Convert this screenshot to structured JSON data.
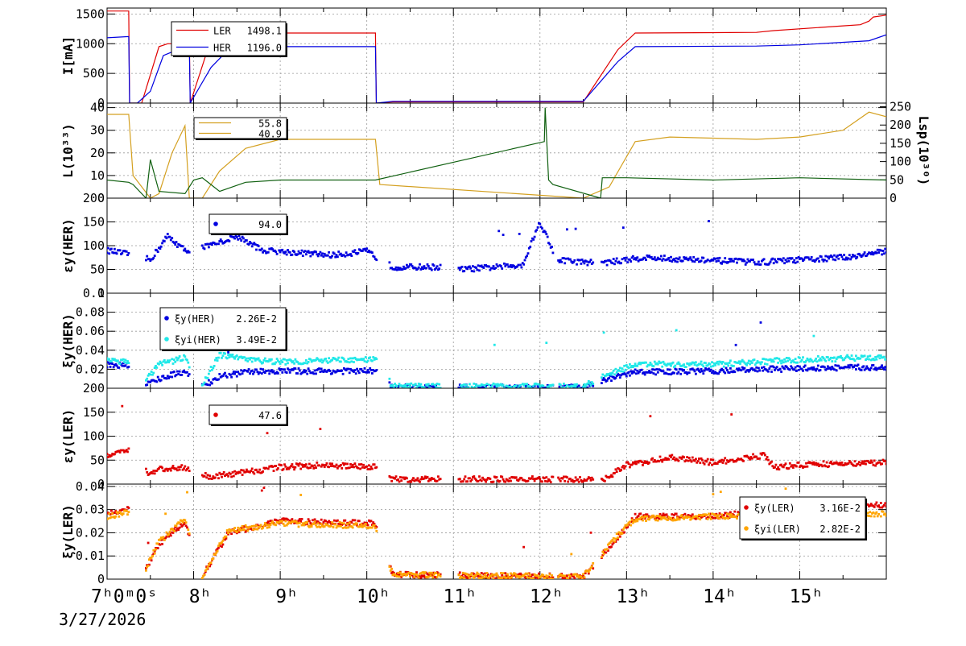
{
  "date": "3/27/2026",
  "first_tick_label": "7ʰ0ᵐ0ˢ",
  "chart_data": [
    {
      "type": "line",
      "ylabel": "I[mA]",
      "yticks": [
        0,
        500,
        1000,
        1500
      ],
      "ylim": [
        0,
        1600
      ],
      "legend": [
        {
          "name": "LER",
          "value": "1498.1",
          "color": "#e00000"
        },
        {
          "name": "HER",
          "value": "1196.0",
          "color": "#0000e0"
        }
      ],
      "series": [
        {
          "name": "LER",
          "color": "#e00000",
          "x": [
            7.0,
            7.25,
            7.26,
            7.3,
            7.4,
            7.6,
            7.7,
            7.9,
            7.95,
            7.96,
            8.15,
            8.3,
            8.6,
            9.0,
            10.1,
            10.11,
            10.3,
            12.5,
            12.9,
            13.1,
            14.5,
            14.7,
            15.5,
            15.7,
            15.8,
            15.85,
            16.0
          ],
          "y": [
            1550,
            1550,
            0,
            0,
            0,
            950,
            1000,
            1000,
            1050,
            0,
            850,
            1150,
            1180,
            1180,
            1180,
            0,
            20,
            20,
            900,
            1180,
            1190,
            1220,
            1300,
            1320,
            1380,
            1450,
            1480
          ]
        },
        {
          "name": "HER",
          "color": "#0000e0",
          "x": [
            7.0,
            7.25,
            7.26,
            7.35,
            7.5,
            7.65,
            7.9,
            7.95,
            7.96,
            8.2,
            8.4,
            8.5,
            8.9,
            10.1,
            10.11,
            10.3,
            12.5,
            12.9,
            13.1,
            14.5,
            15.0,
            15.8,
            16.0
          ],
          "y": [
            1100,
            1120,
            0,
            0,
            200,
            800,
            950,
            950,
            0,
            600,
            900,
            950,
            950,
            950,
            0,
            30,
            30,
            700,
            950,
            960,
            980,
            1050,
            1150
          ]
        }
      ]
    },
    {
      "type": "line",
      "ylabel": "L(10³³)",
      "y2label": "Lsp(10³⁰)",
      "yticks": [
        0,
        10,
        20,
        30,
        40
      ],
      "ylim": [
        0,
        42
      ],
      "y2ticks": [
        0,
        50,
        100,
        150,
        200,
        250
      ],
      "legend": [
        {
          "name": "",
          "value": "55.8",
          "color": "#d4a020"
        },
        {
          "name": "",
          "value": "40.9",
          "color": "#d4a020"
        }
      ],
      "series": [
        {
          "name": "",
          "color": "#d4a020",
          "x": [
            7.0,
            7.25,
            7.3,
            7.5,
            7.6,
            7.75,
            7.9,
            7.95,
            8.1,
            8.3,
            8.6,
            9.0,
            10.1,
            10.15,
            12.5,
            12.8,
            13.1,
            13.5,
            14.5,
            15.0,
            15.5,
            15.8,
            16.0
          ],
          "y": [
            37,
            37,
            10,
            0,
            2,
            20,
            32,
            0,
            0,
            12,
            22,
            26,
            26,
            6,
            0,
            5,
            25,
            27,
            26,
            27,
            30,
            38,
            36
          ]
        },
        {
          "name": "",
          "color": "#106010",
          "x": [
            7.0,
            7.25,
            7.3,
            7.45,
            7.5,
            7.6,
            7.9,
            8.0,
            8.1,
            8.3,
            8.6,
            9.0,
            10.1,
            12.05,
            12.06,
            12.1,
            12.15,
            12.7,
            12.72,
            13.0,
            14.0,
            15.0,
            16.0
          ],
          "y": [
            8,
            7,
            6,
            0,
            17,
            3,
            2,
            8,
            9,
            3,
            7,
            8,
            8,
            25,
            40,
            8,
            6,
            0,
            9,
            9,
            8,
            9,
            8
          ]
        }
      ]
    },
    {
      "type": "scatter",
      "ylabel": "εy(HER)",
      "yticks": [
        0,
        50,
        100,
        150,
        200
      ],
      "ylim": [
        0,
        200
      ],
      "legend": [
        {
          "name": "",
          "value": "94.0",
          "color": "#0000e0"
        }
      ],
      "series": [
        {
          "name": "",
          "color": "#0000e0",
          "x": [
            7.0,
            7.3,
            7.5,
            7.7,
            7.9,
            8.2,
            8.5,
            8.8,
            9.2,
            9.6,
            10.0,
            10.3,
            10.8,
            11.1,
            11.5,
            11.8,
            12.0,
            12.2,
            12.5,
            12.8,
            13.2,
            13.8,
            14.5,
            15.0,
            15.5,
            16.0
          ],
          "y": [
            90,
            80,
            70,
            120,
            90,
            100,
            120,
            90,
            85,
            80,
            88,
            55,
            55,
            50,
            55,
            60,
            150,
            70,
            65,
            65,
            75,
            70,
            65,
            70,
            75,
            88
          ]
        }
      ]
    },
    {
      "type": "scatter",
      "ylabel": "ξy(HER)",
      "yticks": [
        0.02,
        0.04,
        0.06,
        0.08,
        0.1
      ],
      "ytick_labels": [
        "0.02",
        "0.04",
        "0.06",
        "0.08",
        "0.1"
      ],
      "ylim": [
        0,
        0.1
      ],
      "legend": [
        {
          "name": "ξy(HER)",
          "value": "2.26E-2",
          "color": "#0000e0"
        },
        {
          "name": "ξyi(HER)",
          "value": "3.49E-2",
          "color": "#20e8e8"
        }
      ],
      "series": [
        {
          "name": "ξy(HER)",
          "color": "#0000e0",
          "x": [
            7.0,
            7.25,
            7.4,
            7.6,
            7.9,
            8.1,
            8.3,
            8.6,
            9.0,
            10.1,
            10.3,
            12.5,
            12.8,
            13.1,
            14.0,
            15.0,
            16.0
          ],
          "y": [
            0.025,
            0.024,
            0.002,
            0.01,
            0.018,
            0.002,
            0.012,
            0.017,
            0.018,
            0.018,
            0.001,
            0.001,
            0.01,
            0.017,
            0.018,
            0.021,
            0.022
          ]
        },
        {
          "name": "ξyi(HER)",
          "color": "#20e8e8",
          "x": [
            7.0,
            7.25,
            7.4,
            7.6,
            7.9,
            8.1,
            8.3,
            8.6,
            9.0,
            10.1,
            10.3,
            12.5,
            12.8,
            13.1,
            14.0,
            15.0,
            16.0
          ],
          "y": [
            0.03,
            0.028,
            0.003,
            0.025,
            0.032,
            0.004,
            0.035,
            0.03,
            0.028,
            0.03,
            0.002,
            0.002,
            0.015,
            0.025,
            0.025,
            0.03,
            0.033
          ]
        }
      ]
    },
    {
      "type": "scatter",
      "ylabel": "εy(LER)",
      "yticks": [
        0,
        50,
        100,
        150,
        200
      ],
      "ylim": [
        0,
        200
      ],
      "legend": [
        {
          "name": "",
          "value": "47.6",
          "color": "#e00000"
        }
      ],
      "series": [
        {
          "name": "",
          "color": "#e00000",
          "x": [
            7.0,
            7.25,
            7.5,
            7.6,
            7.9,
            8.2,
            8.6,
            9.0,
            9.5,
            10.1,
            10.3,
            11.0,
            12.0,
            12.5,
            12.7,
            13.0,
            13.5,
            14.0,
            14.6,
            14.7,
            15.0,
            16.0
          ],
          "y": [
            60,
            70,
            20,
            30,
            35,
            15,
            25,
            35,
            40,
            35,
            10,
            10,
            10,
            10,
            5,
            40,
            55,
            45,
            60,
            35,
            40,
            45
          ]
        }
      ]
    },
    {
      "type": "scatter",
      "ylabel": "ξy(LER)",
      "yticks": [
        0,
        0.01,
        0.02,
        0.03,
        0.04
      ],
      "ytick_labels": [
        "0",
        "0.01",
        "0.02",
        "0.03",
        "0.04"
      ],
      "ylim": [
        0,
        0.041
      ],
      "legend": [
        {
          "name": "ξy(LER)",
          "value": "3.16E-2",
          "color": "#e00000"
        },
        {
          "name": "ξyi(LER)",
          "value": "2.82E-2",
          "color": "#ffa500"
        }
      ],
      "series": [
        {
          "name": "ξy(LER)",
          "color": "#e00000",
          "x": [
            7.0,
            7.25,
            7.4,
            7.6,
            7.9,
            8.1,
            8.4,
            9.0,
            10.1,
            10.3,
            12.5,
            12.9,
            13.1,
            14.0,
            15.0,
            16.0
          ],
          "y": [
            0.028,
            0.03,
            0.001,
            0.015,
            0.025,
            0.001,
            0.02,
            0.025,
            0.024,
            0.002,
            0.001,
            0.018,
            0.027,
            0.027,
            0.031,
            0.032
          ]
        },
        {
          "name": "ξyi(LER)",
          "color": "#ffa500",
          "x": [
            7.0,
            7.25,
            7.4,
            7.6,
            7.9,
            8.1,
            8.4,
            9.0,
            10.1,
            10.3,
            12.5,
            12.9,
            13.1,
            14.0,
            15.0,
            16.0
          ],
          "y": [
            0.027,
            0.029,
            0.001,
            0.016,
            0.026,
            0.001,
            0.021,
            0.024,
            0.023,
            0.002,
            0.001,
            0.019,
            0.026,
            0.027,
            0.028,
            0.028
          ]
        }
      ]
    }
  ],
  "x_axis": {
    "xlim": [
      7.0,
      16.0
    ],
    "ticks": [
      8,
      9,
      10,
      11,
      12,
      13,
      14,
      15
    ],
    "tick_labels": [
      "8ʰ",
      "9ʰ",
      "10ʰ",
      "11ʰ",
      "12ʰ",
      "13ʰ",
      "14ʰ",
      "15ʰ"
    ]
  }
}
